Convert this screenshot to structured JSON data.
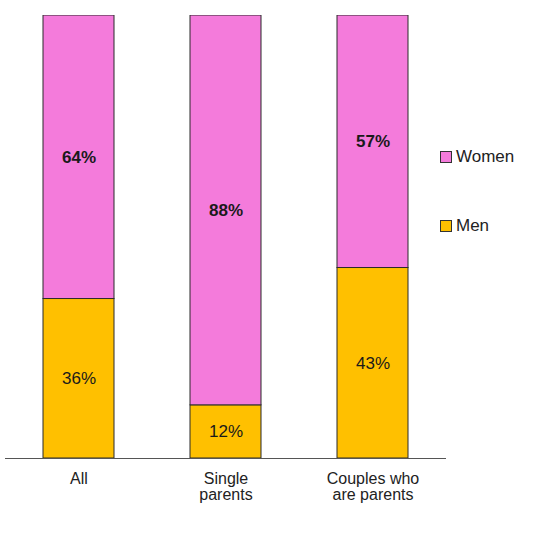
{
  "chart_data": {
    "type": "bar",
    "stacked": true,
    "categories": [
      "All",
      "Single parents",
      "Couples who are parents"
    ],
    "series": [
      {
        "name": "Men",
        "color": "#FFC000",
        "values": [
          36,
          12,
          43
        ],
        "value_labels": [
          "36%",
          "12%",
          "43%"
        ]
      },
      {
        "name": "Women",
        "color": "#F47BDB",
        "values": [
          64,
          88,
          57
        ],
        "value_labels": [
          "64%",
          "88%",
          "57%"
        ]
      }
    ],
    "ylim": [
      0,
      100
    ],
    "data_labels": true,
    "tick_labels": "x",
    "legend": "right"
  }
}
